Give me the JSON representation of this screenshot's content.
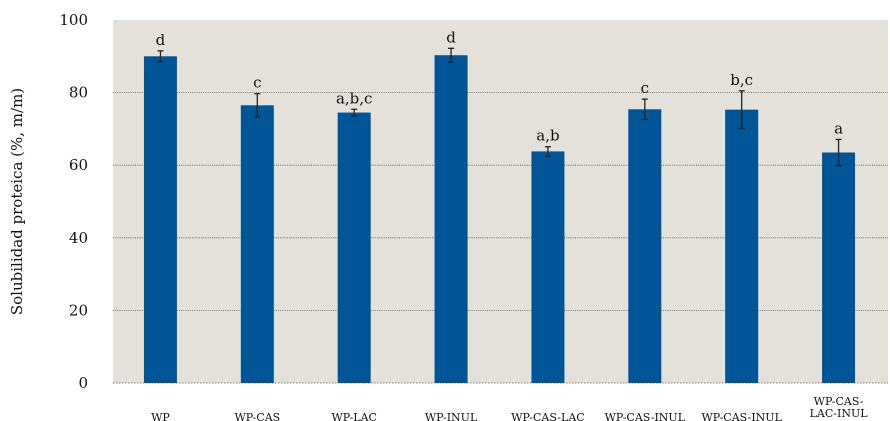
{
  "chart_data": {
    "type": "bar",
    "ylabel": "Solubilidad proteica (%, m/m)",
    "ylim": [
      0,
      100
    ],
    "yticks": [
      0,
      20,
      40,
      60,
      80,
      100
    ],
    "grid": true,
    "categories": [
      "WP",
      "WP-CAS",
      "WP-LAC",
      "WP-INUL",
      "WP-CAS-LAC",
      "WP-CAS-INUL",
      "WP-CAS-INUL",
      "WP-CAS-LAC-INUL"
    ],
    "category_lines": [
      [
        "WP"
      ],
      [
        "WP-CAS"
      ],
      [
        "WP-LAC"
      ],
      [
        "WP-INUL"
      ],
      [
        "WP-CAS-LAC"
      ],
      [
        "WP-CAS-INUL"
      ],
      [
        "WP-CAS-INUL"
      ],
      [
        "WP-CAS-",
        "LAC-INUL"
      ]
    ],
    "values": [
      90.0,
      76.5,
      74.5,
      90.3,
      63.8,
      75.4,
      75.3,
      63.5
    ],
    "errors": [
      1.5,
      3.2,
      0.9,
      1.9,
      1.3,
      2.8,
      5.2,
      3.6
    ],
    "letters": [
      "d",
      "c",
      "a,b,c",
      "d",
      "a,b",
      "c",
      "b,c",
      "a"
    ],
    "colors": {
      "bar": "#005597",
      "plot_background": "#e4e1db",
      "grid": "#555555",
      "error_bar": "#222222"
    }
  }
}
